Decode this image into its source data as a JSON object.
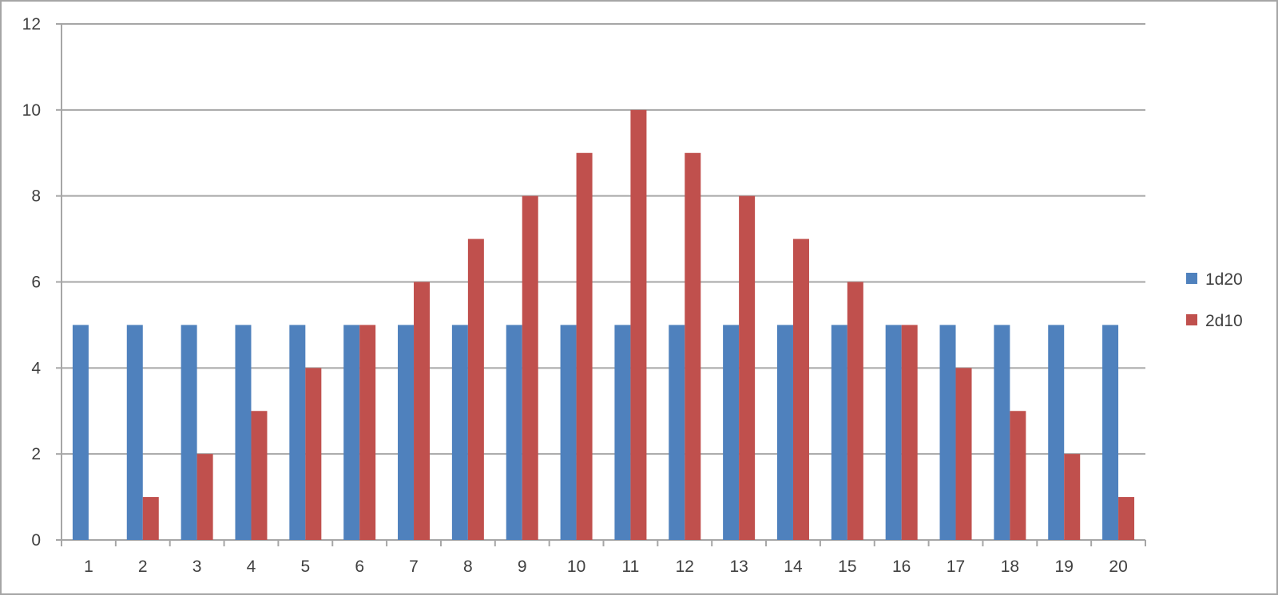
{
  "chart_data": {
    "type": "bar",
    "title": "",
    "xlabel": "",
    "ylabel": "",
    "categories": [
      "1",
      "2",
      "3",
      "4",
      "5",
      "6",
      "7",
      "8",
      "9",
      "10",
      "11",
      "12",
      "13",
      "14",
      "15",
      "16",
      "17",
      "18",
      "19",
      "20"
    ],
    "series": [
      {
        "name": "1d20",
        "color": "#4f81bd",
        "values": [
          5,
          5,
          5,
          5,
          5,
          5,
          5,
          5,
          5,
          5,
          5,
          5,
          5,
          5,
          5,
          5,
          5,
          5,
          5,
          5
        ]
      },
      {
        "name": "2d10",
        "color": "#c0504d",
        "values": [
          0,
          1,
          2,
          3,
          4,
          5,
          6,
          7,
          8,
          9,
          10,
          9,
          8,
          7,
          6,
          5,
          4,
          3,
          2,
          1
        ]
      }
    ],
    "ylim": [
      0,
      12
    ],
    "yticks": [
      0,
      2,
      4,
      6,
      8,
      10,
      12
    ],
    "grid": true,
    "legend_position": "right"
  }
}
